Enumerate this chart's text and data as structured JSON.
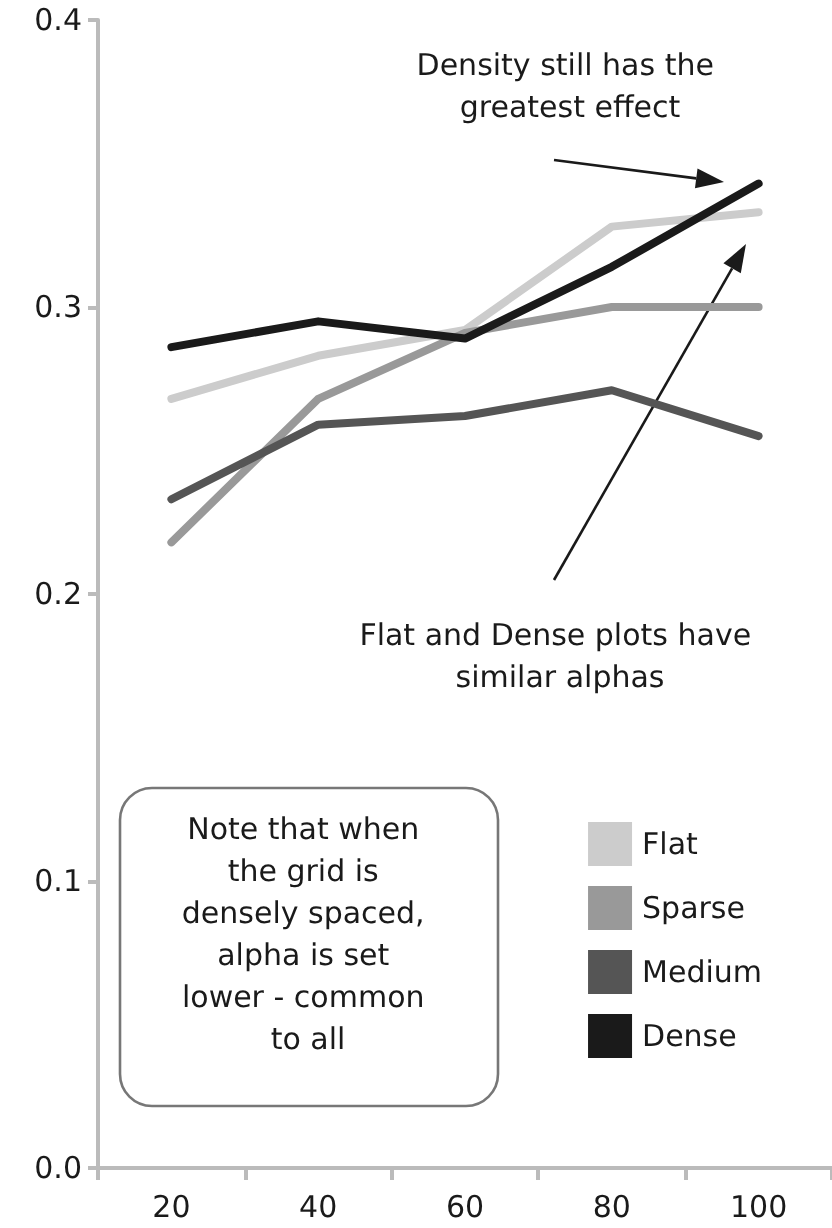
{
  "chart_data": {
    "type": "line",
    "categories": [
      "20",
      "40",
      "60",
      "80",
      "100"
    ],
    "series": [
      {
        "name": "Flat",
        "color": "#cccccc",
        "values": [
          0.268,
          0.283,
          0.292,
          0.328,
          0.333
        ]
      },
      {
        "name": "Sparse",
        "color": "#999999",
        "values": [
          0.218,
          0.268,
          0.291,
          0.3,
          0.3
        ]
      },
      {
        "name": "Medium",
        "color": "#555555",
        "values": [
          0.233,
          0.259,
          0.262,
          0.271,
          0.255
        ]
      },
      {
        "name": "Dense",
        "color": "#1a1a1a",
        "values": [
          0.286,
          0.295,
          0.289,
          0.314,
          0.343
        ]
      }
    ],
    "ylim": [
      0,
      0.4
    ],
    "yticks": [
      {
        "value": 0,
        "label": "0.0"
      },
      0.1,
      0.2,
      0.3,
      0.4
    ],
    "grid": false,
    "legend": "bottom right",
    "marker": "none",
    "line_style": "solid",
    "annotations": [
      "Density still has the greatest effect",
      "Flat and Dense plots have similar alphas",
      "Note that when the grid is densely spaced, alpha is set lower - common to all"
    ]
  }
}
